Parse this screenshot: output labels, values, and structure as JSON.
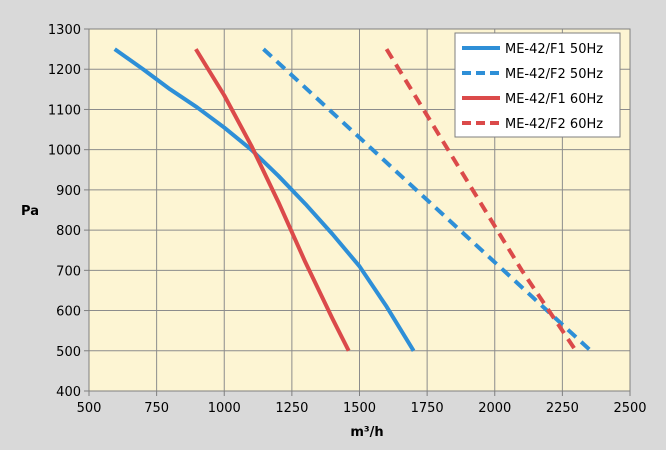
{
  "chart_data": {
    "type": "line",
    "xlabel": "m³/h",
    "ylabel": "Pa",
    "xlim": [
      500,
      2500
    ],
    "ylim": [
      400,
      1300
    ],
    "xticks": [
      500,
      750,
      1000,
      1250,
      1500,
      1750,
      2000,
      2250,
      2500
    ],
    "yticks": [
      400,
      500,
      600,
      700,
      800,
      900,
      1000,
      1100,
      1200,
      1300
    ],
    "grid": true,
    "legend_position": "top-right",
    "plot_background": "#fdf5d3",
    "outer_background": "#d9d9d9",
    "series": [
      {
        "name": "ME-42/F1 50Hz",
        "color": "#2e8fd7",
        "dash": "solid",
        "x": [
          595,
          700,
          800,
          900,
          1000,
          1100,
          1200,
          1300,
          1400,
          1500,
          1600,
          1700
        ],
        "y": [
          1250,
          1200,
          1150,
          1105,
          1055,
          1000,
          935,
          865,
          790,
          710,
          610,
          500
        ]
      },
      {
        "name": "ME-42/F2 50Hz",
        "color": "#2e8fd7",
        "dash": "dashed",
        "x": [
          1145,
          2355
        ],
        "y": [
          1250,
          500
        ]
      },
      {
        "name": "ME-42/F1 60Hz",
        "color": "#db4a4a",
        "dash": "solid",
        "x": [
          895,
          1000,
          1100,
          1200,
          1300,
          1400,
          1460
        ],
        "y": [
          1250,
          1135,
          1010,
          870,
          720,
          580,
          500
        ]
      },
      {
        "name": "ME-42/F2 60Hz",
        "color": "#db4a4a",
        "dash": "dashed",
        "x": [
          1600,
          2100,
          2300
        ],
        "y": [
          1250,
          700,
          500
        ]
      }
    ]
  }
}
